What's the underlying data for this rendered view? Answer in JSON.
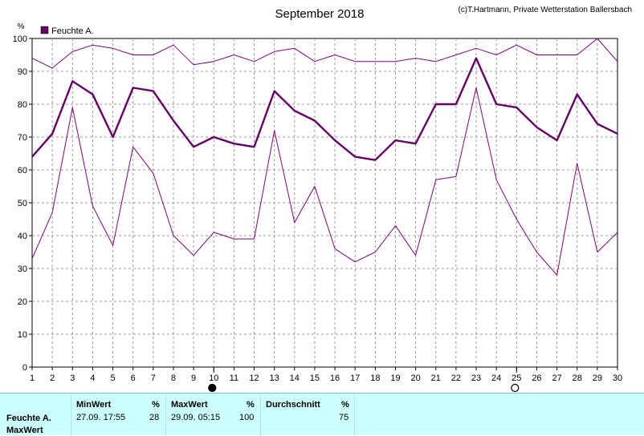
{
  "title": "September 2018",
  "copyright": "(c)T.Hartmann, Private Wetterstation Ballersbach",
  "chart_data": {
    "type": "line",
    "y_unit": "%",
    "ylim": [
      0,
      100
    ],
    "y_ticks": [
      0,
      10,
      20,
      30,
      40,
      50,
      60,
      70,
      80,
      90,
      100
    ],
    "x": [
      1,
      2,
      3,
      4,
      5,
      6,
      7,
      8,
      9,
      10,
      11,
      12,
      13,
      14,
      15,
      16,
      17,
      18,
      19,
      20,
      21,
      22,
      23,
      24,
      25,
      26,
      27,
      28,
      29,
      30
    ],
    "grid": true,
    "legend": "top-left",
    "legend_label": "Feuchte A.",
    "moon_markers": [
      {
        "day": 10,
        "phase": "new"
      },
      {
        "day": 25,
        "phase": "full"
      }
    ],
    "series": [
      {
        "role": "max",
        "color": "#800080",
        "values": [
          94,
          91,
          96,
          98,
          97,
          95,
          95,
          98,
          92,
          93,
          95,
          93,
          96,
          97,
          93,
          95,
          93,
          93,
          93,
          94,
          93,
          95,
          97,
          95,
          98,
          95,
          95,
          95,
          100,
          93
        ]
      },
      {
        "role": "mean",
        "color": "#660066",
        "values": [
          64,
          71,
          87,
          83,
          70,
          85,
          84,
          75,
          67,
          70,
          68,
          67,
          84,
          78,
          75,
          69,
          64,
          63,
          69,
          68,
          80,
          80,
          94,
          80,
          79,
          73,
          69,
          83,
          74,
          71
        ]
      },
      {
        "role": "min",
        "color": "#800080",
        "values": [
          33,
          47,
          79,
          49,
          37,
          67,
          59,
          40,
          34,
          41,
          39,
          39,
          72,
          44,
          55,
          36,
          32,
          35,
          43,
          34,
          57,
          58,
          85,
          57,
          45,
          35,
          28,
          62,
          35,
          41
        ]
      }
    ]
  },
  "stats": {
    "min_header": "MinWert",
    "max_header": "MaxWert",
    "avg_header": "Durchschnitt",
    "unit": "%",
    "row_label": "Feuchte A.",
    "row2_label": "MaxWert",
    "min_value": "27.09.  17:55",
    "min_num": "28",
    "max_value": "29.09.  05:15",
    "max_num": "100",
    "avg_num": "75"
  }
}
